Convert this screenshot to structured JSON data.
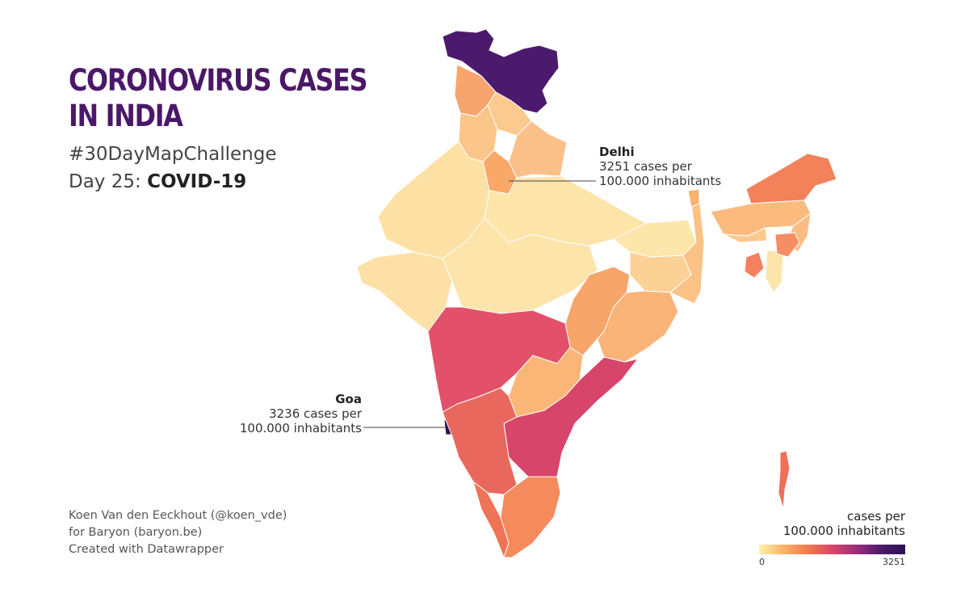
{
  "title": {
    "line1": "Coronovirus cases",
    "line2": "in India"
  },
  "subtitle": {
    "hashtag": "#30DayMapChallenge",
    "day_prefix": "Day 25:",
    "day_topic": "COVID-19"
  },
  "annotations": {
    "delhi": {
      "name": "Delhi",
      "line1": "3251 cases per",
      "line2": "100.000 inhabitants"
    },
    "goa": {
      "name": "Goa",
      "line1": "3236 cases per",
      "line2": "100.000 inhabitants"
    }
  },
  "credits": {
    "line1": "Koen Van den Eeckhout (@koen_vde)",
    "line2": "for Baryon (baryon.be)",
    "line3": "Created with Datawrapper"
  },
  "legend": {
    "title_line1": "cases per",
    "title_line2": "100.000 inhabitants",
    "min_label": "0",
    "max_label": "3251"
  },
  "colors": {
    "title": "#4b1869",
    "scale": [
      "#fcf1a8",
      "#fbb36a",
      "#f0794d",
      "#d8456a",
      "#9a2f7b",
      "#4c1a6c",
      "#2a1152"
    ],
    "background": "#ffffff"
  }
}
